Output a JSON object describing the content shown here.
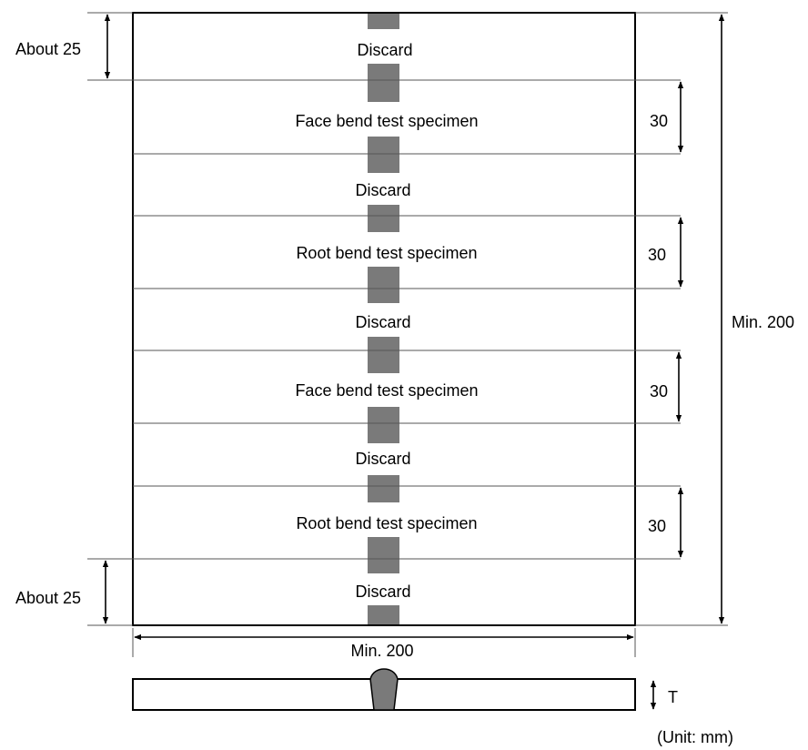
{
  "diagram": {
    "sections": [
      {
        "label": "Discard"
      },
      {
        "label": "Face bend test specimen"
      },
      {
        "label": "Discard"
      },
      {
        "label": "Root bend test specimen"
      },
      {
        "label": "Discard"
      },
      {
        "label": "Face bend test specimen"
      },
      {
        "label": "Discard"
      },
      {
        "label": "Root bend test specimen"
      },
      {
        "label": "Discard"
      }
    ],
    "dimensions": {
      "top_discard": "About 25",
      "bottom_discard": "About 25",
      "specimen_width": "30",
      "total_length": "Min. 200",
      "plate_width": "Min. 200",
      "thickness": "T"
    },
    "unit_note": "(Unit: mm)",
    "colors": {
      "weld": "#7a7a7a",
      "line": "#000000",
      "thin_line": "#555555"
    }
  }
}
